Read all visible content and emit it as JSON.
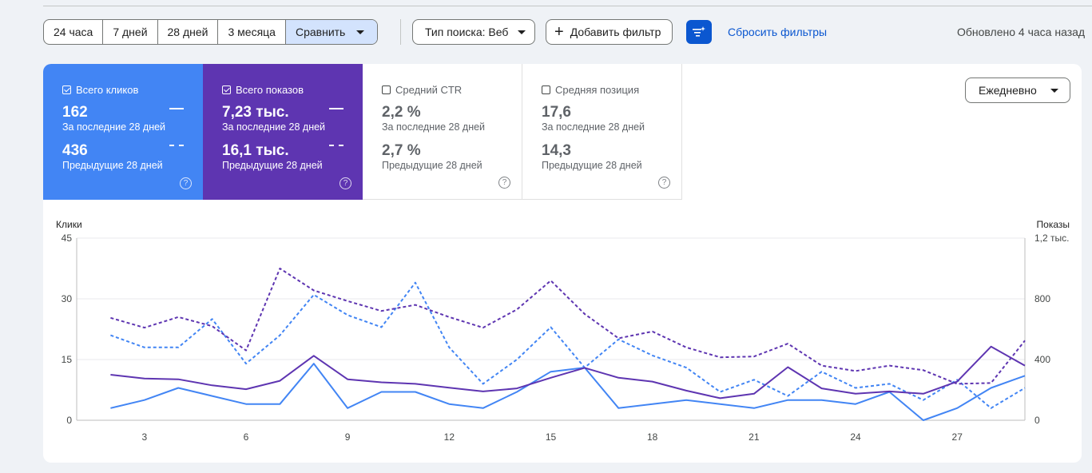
{
  "toolbar": {
    "ranges": [
      "24 часа",
      "7 дней",
      "28 дней",
      "3 месяца"
    ],
    "compare_label": "Сравнить",
    "search_type_label": "Тип поиска: Веб",
    "add_filter_label": "Добавить фильтр",
    "reset_filters_label": "Сбросить фильтры",
    "updated_text": "Обновлено 4 часа назад"
  },
  "metrics": {
    "clicks": {
      "label": "Всего кликов",
      "current": "162",
      "current_sub": "За последние 28 дней",
      "previous": "436",
      "previous_sub": "Предыдущие 28 дней",
      "color": "#4285f4",
      "checked": true
    },
    "impressions": {
      "label": "Всего показов",
      "current": "7,23 тыс.",
      "current_sub": "За последние 28 дней",
      "previous": "16,1 тыс.",
      "previous_sub": "Предыдущие 28 дней",
      "color": "#5e35b1",
      "checked": true
    },
    "ctr": {
      "label": "Средний CTR",
      "current": "2,2 %",
      "current_sub": "За последние 28 дней",
      "previous": "2,7 %",
      "previous_sub": "Предыдущие 28 дней",
      "checked": false
    },
    "position": {
      "label": "Средняя позиция",
      "current": "17,6",
      "current_sub": "За последние 28 дней",
      "previous": "14,3",
      "previous_sub": "Предыдущие 28 дней",
      "checked": false
    }
  },
  "granularity_label": "Ежедневно",
  "help_glyph": "?",
  "chart_data": {
    "type": "line",
    "y_left_label": "Клики",
    "y_right_label": "Показы",
    "y_left_ticks": [
      "0",
      "15",
      "30",
      "45"
    ],
    "y_right_ticks": [
      "0",
      "400",
      "800",
      "1,2 тыс."
    ],
    "ylim_left": [
      0,
      45
    ],
    "ylim_right": [
      0,
      1200
    ],
    "x": [
      2,
      3,
      4,
      5,
      6,
      7,
      8,
      9,
      10,
      11,
      12,
      13,
      14,
      15,
      16,
      17,
      18,
      19,
      20,
      21,
      22,
      23,
      24,
      25,
      26,
      27,
      28,
      29
    ],
    "x_ticks": [
      3,
      6,
      9,
      12,
      15,
      18,
      21,
      24,
      27
    ],
    "grid": true,
    "series": [
      {
        "key": "clicks_current",
        "axis": "left",
        "style": "solid",
        "color": "#4285f4",
        "values": [
          3,
          5,
          8,
          6,
          4,
          4,
          14,
          3,
          7,
          7,
          4,
          3,
          7,
          12,
          13,
          3,
          4,
          5,
          4,
          3,
          5,
          5,
          4,
          7,
          0,
          3,
          8,
          11
        ]
      },
      {
        "key": "clicks_previous",
        "axis": "left",
        "style": "dashed",
        "color": "#4285f4",
        "values": [
          21,
          18,
          18,
          25,
          14,
          21,
          31,
          26,
          23,
          34,
          18,
          9,
          15,
          23,
          13,
          20,
          16,
          13,
          7,
          10,
          6,
          12,
          8,
          9,
          5,
          10,
          3,
          8
        ]
      },
      {
        "key": "impressions_current",
        "axis": "right",
        "style": "solid",
        "color": "#5e35b1",
        "values": [
          300,
          275,
          270,
          230,
          205,
          260,
          425,
          270,
          250,
          240,
          215,
          190,
          210,
          280,
          345,
          280,
          255,
          195,
          145,
          175,
          350,
          210,
          175,
          190,
          175,
          255,
          485,
          360
        ]
      },
      {
        "key": "impressions_previous",
        "axis": "right",
        "style": "dashed",
        "color": "#5e35b1",
        "values": [
          675,
          610,
          680,
          620,
          460,
          1000,
          855,
          785,
          720,
          760,
          680,
          610,
          730,
          920,
          700,
          540,
          585,
          480,
          415,
          420,
          505,
          360,
          325,
          360,
          330,
          240,
          245,
          525
        ]
      }
    ]
  }
}
